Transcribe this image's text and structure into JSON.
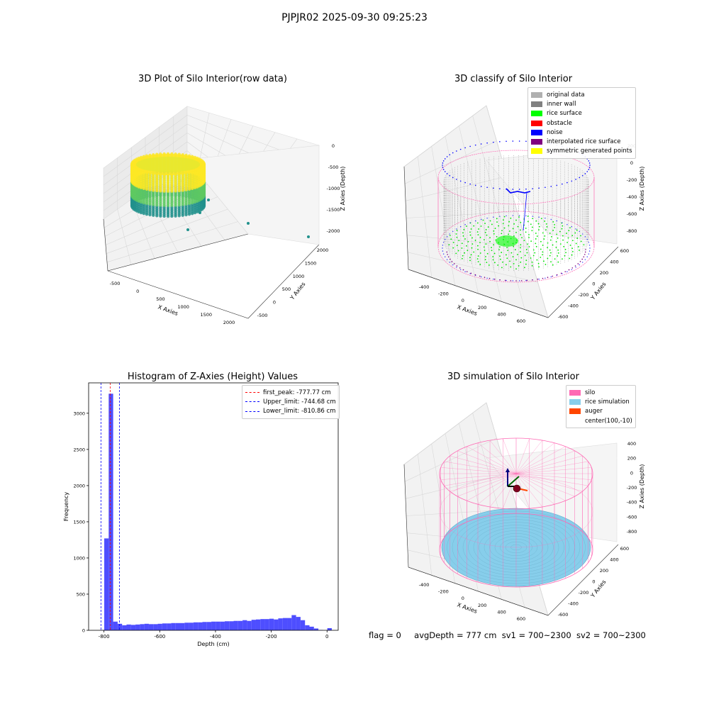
{
  "figure": {
    "suptitle": "PJPJR02 2025-09-30 09:25:23"
  },
  "status": {
    "flag": "flag = 0",
    "avg_depth": "avgDepth = 777 cm",
    "sv1": "sv1 = 700~2300",
    "sv2": "sv2 = 700~2300"
  },
  "chart_data": [
    {
      "id": "raw",
      "type": "scatter",
      "title": "3D Plot of Silo Interior(row data)",
      "xlabel": "X Axies",
      "ylabel": "Y Axies",
      "zlabel": "Z Axies (Depth)",
      "x_ticks": [
        "-500",
        "0",
        "500",
        "1000",
        "1500",
        "2000"
      ],
      "y_ticks": [
        "-500",
        "0",
        "500",
        "1000",
        "1500",
        "2000"
      ],
      "z_ticks": [
        "0",
        "-500",
        "-1000",
        "-1500",
        "-2000"
      ],
      "colormap": [
        "#440154",
        "#21918c",
        "#5ec962",
        "#fde725"
      ]
    },
    {
      "id": "classify",
      "type": "scatter",
      "title": "3D classify of Silo Interior",
      "xlabel": "X Axies",
      "ylabel": "Y Axies",
      "zlabel": "Z Axies (Depth)",
      "x_ticks": [
        "-400",
        "-200",
        "0",
        "200",
        "400",
        "600"
      ],
      "y_ticks": [
        "-600",
        "-400",
        "-200",
        "0",
        "200",
        "400",
        "600"
      ],
      "z_ticks": [
        "200",
        "0",
        "-200",
        "-400",
        "-600",
        "-800"
      ],
      "legend": [
        {
          "label": "original data",
          "color": "#b0b0b0"
        },
        {
          "label": "inner wall",
          "color": "#808080"
        },
        {
          "label": "rice surface",
          "color": "#00ff00"
        },
        {
          "label": "obstacle",
          "color": "#ff0000"
        },
        {
          "label": "noise",
          "color": "#0000ff"
        },
        {
          "label": "interpolated rice surface",
          "color": "#800080"
        },
        {
          "label": "symmetric generated points",
          "color": "#ffff00"
        }
      ],
      "legend_loc": "upper right"
    },
    {
      "id": "hist",
      "type": "bar",
      "title": "Histogram of Z-Axies (Height) Values",
      "xlabel": "Depth (cm)",
      "ylabel": "Frequency",
      "xlim": [
        -855,
        40
      ],
      "ylim": [
        0,
        3420
      ],
      "x_ticks": [
        -800,
        -600,
        -400,
        -200,
        0
      ],
      "y_ticks": [
        0,
        500,
        1000,
        1500,
        2000,
        2500,
        3000
      ],
      "bar_color": "#4444ff",
      "bin_width": 16,
      "bin_start": -815,
      "values": [
        5,
        1270,
        3270,
        120,
        90,
        70,
        80,
        75,
        80,
        85,
        90,
        85,
        85,
        90,
        95,
        95,
        100,
        100,
        100,
        105,
        105,
        110,
        110,
        115,
        115,
        120,
        120,
        120,
        125,
        125,
        130,
        130,
        140,
        130,
        145,
        150,
        155,
        155,
        160,
        150,
        165,
        170,
        170,
        210,
        185,
        140,
        70,
        50,
        25,
        5,
        0,
        30
      ],
      "lines": [
        {
          "label": "first_peak: -777.77 cm",
          "x": -777.77,
          "color": "#ff0000"
        },
        {
          "label": "Upper_limit: -744.68 cm",
          "x": -744.68,
          "color": "#0000ff"
        },
        {
          "label": "Lower_limit: -810.86 cm",
          "x": -810.86,
          "color": "#0000ff"
        }
      ],
      "legend_loc": "upper right"
    },
    {
      "id": "sim",
      "type": "scatter",
      "title": "3D simulation of Silo Interior",
      "xlabel": "X Axies",
      "ylabel": "Y Axies",
      "zlabel": "Z Axies (Depth)",
      "x_ticks": [
        "-400",
        "-200",
        "0",
        "200",
        "400",
        "600"
      ],
      "y_ticks": [
        "-600",
        "-400",
        "-200",
        "0",
        "200",
        "400",
        "600"
      ],
      "z_ticks": [
        "400",
        "200",
        "0",
        "-200",
        "-400",
        "-600",
        "-800"
      ],
      "legend": [
        {
          "label": "silo",
          "color": "#ff69b4"
        },
        {
          "label": "rice simulation",
          "color": "#87ceeb"
        },
        {
          "label": "auger",
          "color": "#ff4500"
        },
        {
          "label": "center(100,-10)",
          "color": ""
        }
      ],
      "legend_loc": "upper right"
    }
  ]
}
